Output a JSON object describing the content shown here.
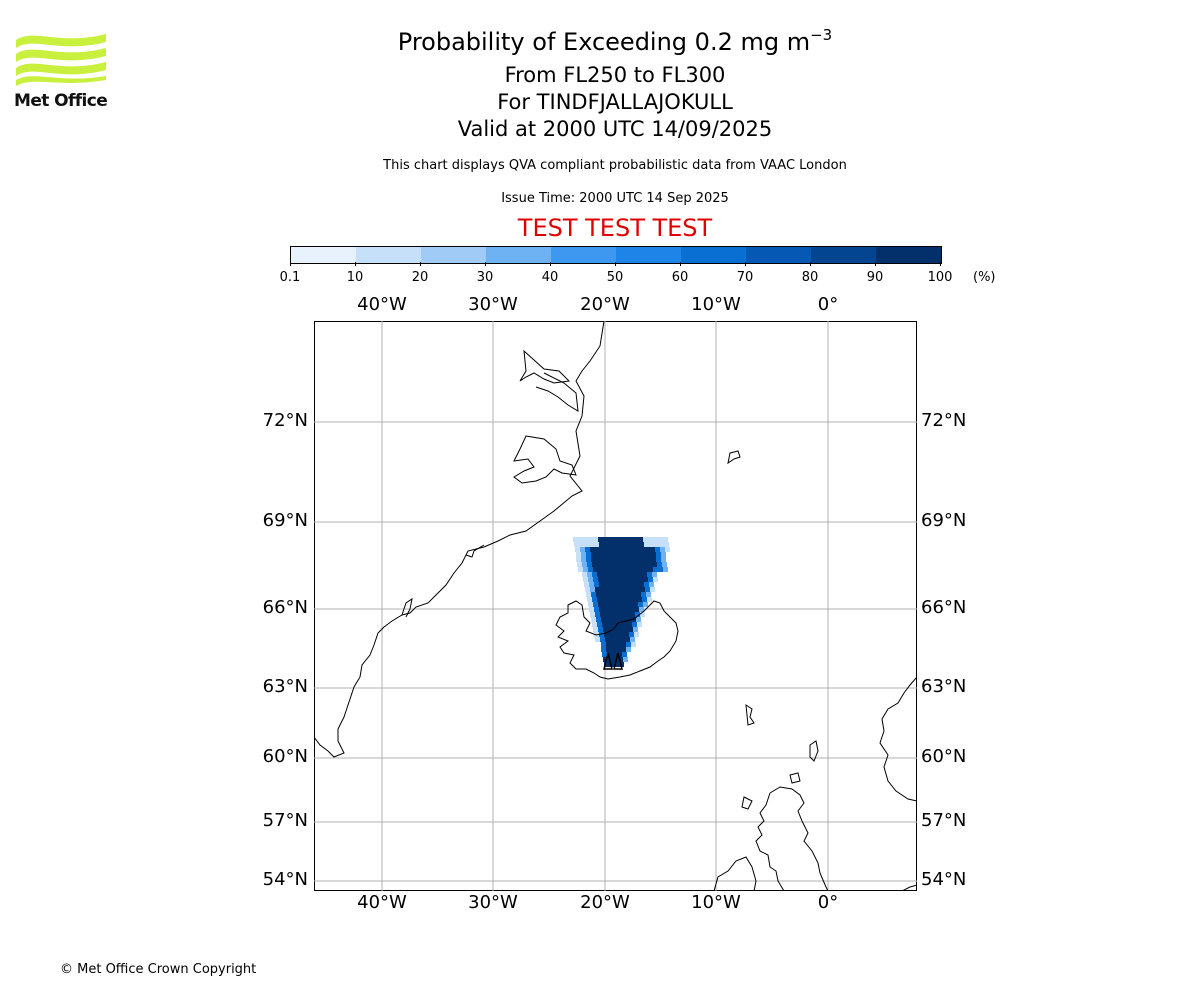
{
  "title": {
    "main": "Probability of Exceeding 0.2 mg m",
    "main_exponent": "−3",
    "levels": "From FL250 to FL300",
    "volcano": "For TINDFJALLAJOKULL",
    "valid": "Valid at 2000 UTC 14/09/2025",
    "description": "This chart displays QVA compliant probabilistic data from VAAC London",
    "issue": "Issue Time: 2000 UTC 14 Sep 2025",
    "test_banner": "TEST TEST TEST"
  },
  "logo": {
    "text": "Met Office",
    "color": "#c8f03c"
  },
  "colorbar": {
    "labels": [
      "0.1",
      "10",
      "20",
      "30",
      "40",
      "50",
      "60",
      "70",
      "80",
      "90",
      "100"
    ],
    "colors": [
      "#e8f2fd",
      "#c6e0f9",
      "#9fcbf6",
      "#6eb2f3",
      "#3f98ef",
      "#1f84e8",
      "#0a6fd3",
      "#0559b4",
      "#044592",
      "#03306b"
    ],
    "unit": "(%)"
  },
  "map": {
    "lon_labels": [
      "40°W",
      "30°W",
      "20°W",
      "10°W",
      "0°"
    ],
    "lat_labels": [
      "72°N",
      "69°N",
      "66°N",
      "63°N",
      "60°N",
      "57°N",
      "54°N"
    ],
    "plume_probability_max": 100
  },
  "footer": {
    "copyright": "© Met Office Crown Copyright"
  }
}
